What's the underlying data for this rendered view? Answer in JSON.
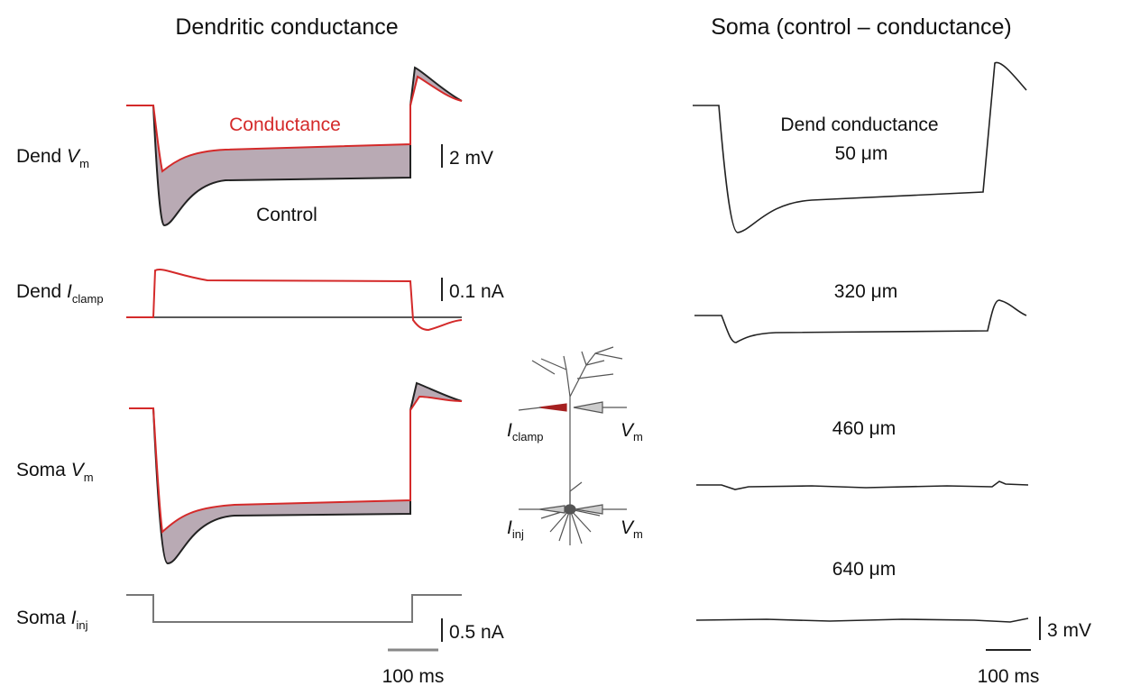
{
  "left_title": "Dendritic conductance",
  "right_title": "Soma (control – conductance)",
  "trace_labels": {
    "conductance": "Conductance",
    "control": "Control"
  },
  "row_labels": [
    {
      "text": "Dend ",
      "var": "V",
      "sub": "m"
    },
    {
      "text": "Dend ",
      "var": "I",
      "sub": "clamp"
    },
    {
      "text": "Soma ",
      "var": "V",
      "sub": "m"
    },
    {
      "text": "Soma ",
      "var": "I",
      "sub": "inj"
    }
  ],
  "left_scale_bars": [
    "2 mV",
    "0.1 nA",
    "0.5 nA",
    "100 ms"
  ],
  "right_labels": [
    "Dend conductance",
    "50 μm",
    "320 μm",
    "460 μm",
    "640 μm"
  ],
  "right_scale_bars": [
    "3 mV",
    "100 ms"
  ],
  "neuron_labels": [
    {
      "var": "I",
      "sub": "clamp"
    },
    {
      "var": "V",
      "sub": "m"
    },
    {
      "var": "I",
      "sub": "inj"
    },
    {
      "var": "V",
      "sub": "m"
    }
  ]
}
